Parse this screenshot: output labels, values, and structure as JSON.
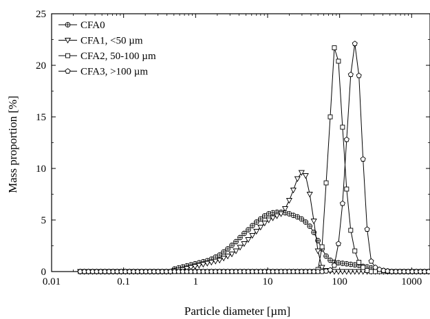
{
  "chart_data": {
    "type": "line",
    "title": "",
    "xlabel": "Particle diameter [µm]",
    "ylabel": "Mass proportion [%]",
    "x_scale": "log",
    "xlim": [
      0.01,
      1800
    ],
    "ylim": [
      0,
      25
    ],
    "x_ticks": [
      0.01,
      0.1,
      1,
      10,
      100,
      1000
    ],
    "x_tick_labels": [
      "0.01",
      "0.1",
      "1",
      "10",
      "100",
      "1000"
    ],
    "y_ticks": [
      0,
      5,
      10,
      15,
      20,
      25
    ],
    "y_tick_labels": [
      "0",
      "5",
      "10",
      "15",
      "20",
      "25"
    ],
    "grid": false,
    "legend_position": "top-left",
    "series": [
      {
        "name": "CFA0",
        "marker": "circle-plus",
        "x": [
          0.025,
          0.0285,
          0.0325,
          0.0371,
          0.0422,
          0.0481,
          0.0549,
          0.0626,
          0.0713,
          0.0813,
          0.0927,
          0.1057,
          0.1205,
          0.1374,
          0.1566,
          0.1785,
          0.2035,
          0.232,
          0.2645,
          0.3015,
          0.3437,
          0.3919,
          0.4467,
          0.5093,
          0.5806,
          0.6619,
          0.7546,
          0.8603,
          0.9807,
          1.118,
          1.275,
          1.453,
          1.657,
          1.889,
          2.153,
          2.455,
          2.798,
          3.19,
          3.637,
          4.146,
          4.727,
          5.389,
          6.144,
          7.004,
          7.985,
          9.103,
          10.38,
          11.83,
          13.49,
          15.38,
          17.53,
          19.98,
          22.78,
          25.97,
          29.61,
          33.76,
          38.48,
          43.87,
          50.01,
          57.02,
          65.0,
          74.1,
          84.48,
          96.31,
          109.8,
          125.2,
          142.7,
          162.7,
          185.5,
          211.5,
          241.1,
          274.8,
          313.3,
          357.2,
          407.2,
          464.2,
          529.2,
          603.3,
          687.8,
          784.1,
          893.9,
          1019,
          1162,
          1325,
          1510,
          1722
        ],
        "values": [
          0,
          0,
          0,
          0,
          0,
          0,
          0,
          0,
          0,
          0,
          0,
          0,
          0,
          0,
          0,
          0,
          0,
          0,
          0,
          0,
          0,
          0,
          0,
          0.25,
          0.35,
          0.45,
          0.55,
          0.65,
          0.75,
          0.85,
          0.95,
          1.05,
          1.2,
          1.4,
          1.6,
          1.9,
          2.2,
          2.55,
          2.9,
          3.3,
          3.7,
          4.05,
          4.45,
          4.8,
          5.1,
          5.4,
          5.6,
          5.7,
          5.75,
          5.75,
          5.7,
          5.6,
          5.45,
          5.3,
          5.1,
          4.8,
          4.4,
          3.8,
          3.0,
          2.2,
          1.5,
          1.1,
          0.9,
          0.85,
          0.8,
          0.75,
          0.7,
          0.65,
          0.6,
          0.5,
          0.45,
          0.35,
          0.25,
          0.15,
          0.1,
          0.05,
          0,
          0,
          0,
          0,
          0,
          0,
          0,
          0,
          0,
          0
        ]
      },
      {
        "name": "CFA1, <50 µm",
        "marker": "triangle-down",
        "x": [
          0.025,
          0.0285,
          0.0325,
          0.0371,
          0.0422,
          0.0481,
          0.0549,
          0.0626,
          0.0713,
          0.0813,
          0.0927,
          0.1057,
          0.1205,
          0.1374,
          0.1566,
          0.1785,
          0.2035,
          0.232,
          0.2645,
          0.3015,
          0.3437,
          0.3919,
          0.4467,
          0.5093,
          0.5806,
          0.6619,
          0.7546,
          0.8603,
          0.9807,
          1.118,
          1.275,
          1.453,
          1.657,
          1.889,
          2.153,
          2.455,
          2.798,
          3.19,
          3.637,
          4.146,
          4.727,
          5.389,
          6.144,
          7.004,
          7.985,
          9.103,
          10.38,
          11.83,
          13.49,
          15.38,
          17.53,
          19.98,
          22.78,
          25.97,
          29.61,
          33.76,
          38.48,
          43.87,
          50.01,
          57.02,
          65.0,
          74.1,
          84.48,
          96.31,
          109.8,
          125.2,
          142.7,
          162.7,
          185.5,
          211.5,
          241.1,
          274.8,
          313.3,
          357.2,
          407.2,
          464.2,
          529.2,
          603.3,
          687.8,
          784.1,
          893.9,
          1019,
          1162,
          1325,
          1510,
          1722
        ],
        "values": [
          0,
          0,
          0,
          0,
          0,
          0,
          0,
          0,
          0,
          0,
          0,
          0,
          0,
          0,
          0,
          0,
          0,
          0,
          0,
          0,
          0,
          0,
          0,
          0.1,
          0.15,
          0.2,
          0.3,
          0.4,
          0.5,
          0.6,
          0.7,
          0.8,
          0.9,
          1.0,
          1.1,
          1.3,
          1.5,
          1.7,
          2.0,
          2.35,
          2.7,
          3.1,
          3.5,
          3.9,
          4.3,
          4.7,
          5.0,
          5.2,
          5.4,
          5.6,
          6.1,
          6.9,
          7.9,
          9.0,
          9.6,
          9.3,
          7.5,
          4.9,
          2.0,
          0.4,
          0.1,
          0.05,
          0,
          0,
          0,
          0,
          0,
          0,
          0,
          0,
          0,
          0,
          0,
          0,
          0,
          0,
          0,
          0,
          0,
          0,
          0,
          0,
          0,
          0,
          0,
          0
        ]
      },
      {
        "name": "CFA2, 50-100 µm",
        "marker": "square",
        "x": [
          0.025,
          0.0285,
          0.0325,
          0.0371,
          0.0422,
          0.0481,
          0.0549,
          0.0626,
          0.0713,
          0.0813,
          0.0927,
          0.1057,
          0.1205,
          0.1374,
          0.1566,
          0.1785,
          0.2035,
          0.232,
          0.2645,
          0.3015,
          0.3437,
          0.3919,
          0.4467,
          0.5093,
          0.5806,
          0.6619,
          0.7546,
          0.8603,
          0.9807,
          1.118,
          1.275,
          1.453,
          1.657,
          1.889,
          2.153,
          2.455,
          2.798,
          3.19,
          3.637,
          4.146,
          4.727,
          5.389,
          6.144,
          7.004,
          7.985,
          9.103,
          10.38,
          11.83,
          13.49,
          15.38,
          17.53,
          19.98,
          22.78,
          25.97,
          29.61,
          33.76,
          38.48,
          43.87,
          50.01,
          57.02,
          65.0,
          74.1,
          84.48,
          96.31,
          109.8,
          125.2,
          142.7,
          162.7,
          185.5,
          211.5,
          241.1,
          274.8,
          313.3,
          357.2,
          407.2,
          464.2,
          529.2,
          603.3,
          687.8,
          784.1,
          893.9,
          1019,
          1162,
          1325,
          1510,
          1722
        ],
        "values": [
          0,
          0,
          0,
          0,
          0,
          0,
          0,
          0,
          0,
          0,
          0,
          0,
          0,
          0,
          0,
          0,
          0,
          0,
          0,
          0,
          0,
          0,
          0,
          0,
          0,
          0,
          0,
          0,
          0,
          0,
          0,
          0,
          0,
          0,
          0,
          0,
          0,
          0,
          0,
          0,
          0,
          0,
          0,
          0,
          0,
          0,
          0,
          0,
          0,
          0,
          0,
          0,
          0,
          0,
          0,
          0,
          0,
          0,
          0.2,
          2.4,
          8.6,
          15.0,
          21.7,
          20.4,
          14.0,
          8.0,
          4.0,
          2.0,
          0.9,
          0.4,
          0.1,
          0,
          0,
          0,
          0,
          0,
          0,
          0,
          0,
          0,
          0,
          0,
          0,
          0,
          0,
          0
        ]
      },
      {
        "name": "CFA3, >100 µm",
        "marker": "pentagon",
        "x": [
          0.025,
          0.0285,
          0.0325,
          0.0371,
          0.0422,
          0.0481,
          0.0549,
          0.0626,
          0.0713,
          0.0813,
          0.0927,
          0.1057,
          0.1205,
          0.1374,
          0.1566,
          0.1785,
          0.2035,
          0.232,
          0.2645,
          0.3015,
          0.3437,
          0.3919,
          0.4467,
          0.5093,
          0.5806,
          0.6619,
          0.7546,
          0.8603,
          0.9807,
          1.118,
          1.275,
          1.453,
          1.657,
          1.889,
          2.153,
          2.455,
          2.798,
          3.19,
          3.637,
          4.146,
          4.727,
          5.389,
          6.144,
          7.004,
          7.985,
          9.103,
          10.38,
          11.83,
          13.49,
          15.38,
          17.53,
          19.98,
          22.78,
          25.97,
          29.61,
          33.76,
          38.48,
          43.87,
          50.01,
          57.02,
          65.0,
          74.1,
          84.48,
          96.31,
          109.8,
          125.2,
          142.7,
          162.7,
          185.5,
          211.5,
          241.1,
          274.8,
          313.3,
          357.2,
          407.2,
          464.2,
          529.2,
          603.3,
          687.8,
          784.1,
          893.9,
          1019,
          1162,
          1325,
          1510,
          1722
        ],
        "values": [
          0,
          0,
          0,
          0,
          0,
          0,
          0,
          0,
          0,
          0,
          0,
          0,
          0,
          0,
          0,
          0,
          0,
          0,
          0,
          0,
          0,
          0,
          0,
          0,
          0,
          0,
          0,
          0,
          0,
          0,
          0,
          0,
          0,
          0,
          0,
          0,
          0,
          0,
          0,
          0,
          0,
          0,
          0,
          0,
          0,
          0,
          0,
          0,
          0,
          0,
          0,
          0,
          0,
          0,
          0,
          0,
          0,
          0,
          0,
          0,
          0.05,
          0.15,
          0.6,
          2.7,
          6.6,
          12.8,
          19.1,
          22.1,
          19.0,
          10.9,
          4.1,
          1.0,
          0.4,
          0.2,
          0.1,
          0.05,
          0,
          0,
          0,
          0,
          0,
          0,
          0,
          0,
          0,
          0
        ]
      }
    ]
  }
}
